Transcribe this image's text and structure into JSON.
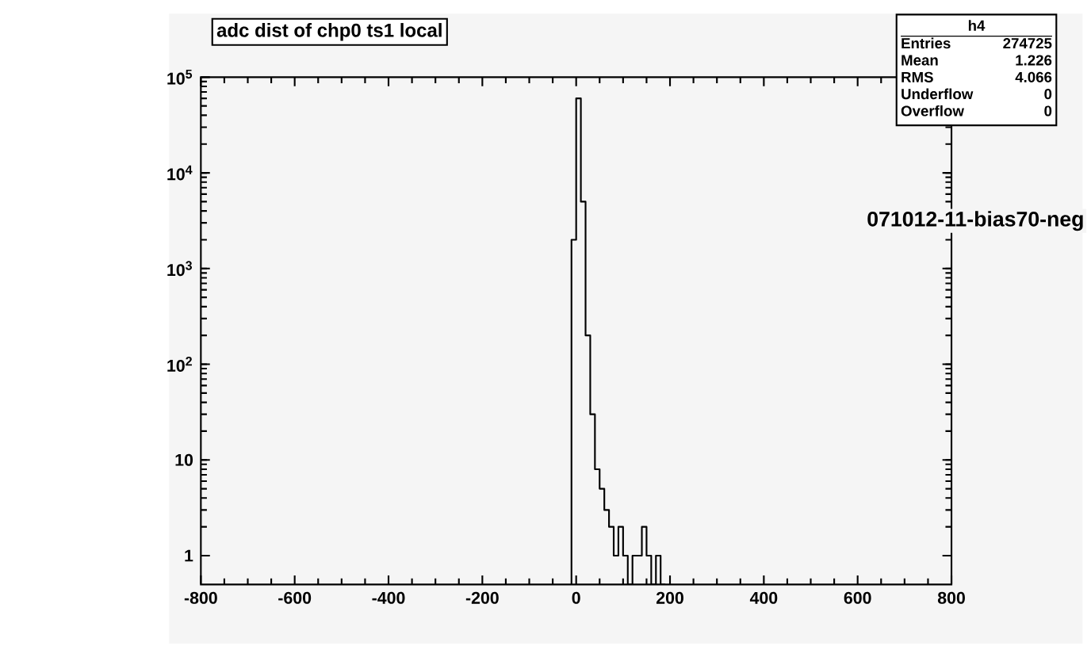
{
  "chart_data": {
    "type": "histogram",
    "title": "adc dist of chp0 ts1 local",
    "bins": [
      -10,
      0,
      10,
      20,
      30,
      40,
      50,
      60,
      70,
      80,
      90,
      100,
      110,
      120,
      130,
      140,
      150,
      160,
      170,
      180,
      190
    ],
    "values": [
      2000,
      60000,
      5000,
      200,
      30,
      8,
      5,
      3,
      2,
      1,
      2,
      1,
      null,
      1,
      1,
      2,
      1,
      null,
      1,
      null
    ],
    "color": "#000000",
    "log": "y",
    "xlim": [
      -800,
      800
    ],
    "ylim": [
      0.5,
      100000
    ],
    "xticks": [
      -800,
      -600,
      -400,
      -200,
      0,
      200,
      400,
      600,
      800
    ],
    "yticks": [
      1,
      10,
      {
        "value": 100,
        "label": "10$^{2}$"
      },
      {
        "value": 1000,
        "label": "10$^{3}$"
      },
      {
        "value": 10000,
        "label": "10$^{4}$"
      },
      {
        "value": 100000,
        "label": "10$^{5}$"
      }
    ],
    "annotations": [
      "h4",
      "Entries",
      "274725",
      "Mean",
      "1.226",
      "RMS",
      "4.066",
      "Underflow",
      "0",
      "Overflow",
      "0",
      "071012-11-bias70-neg"
    ]
  }
}
